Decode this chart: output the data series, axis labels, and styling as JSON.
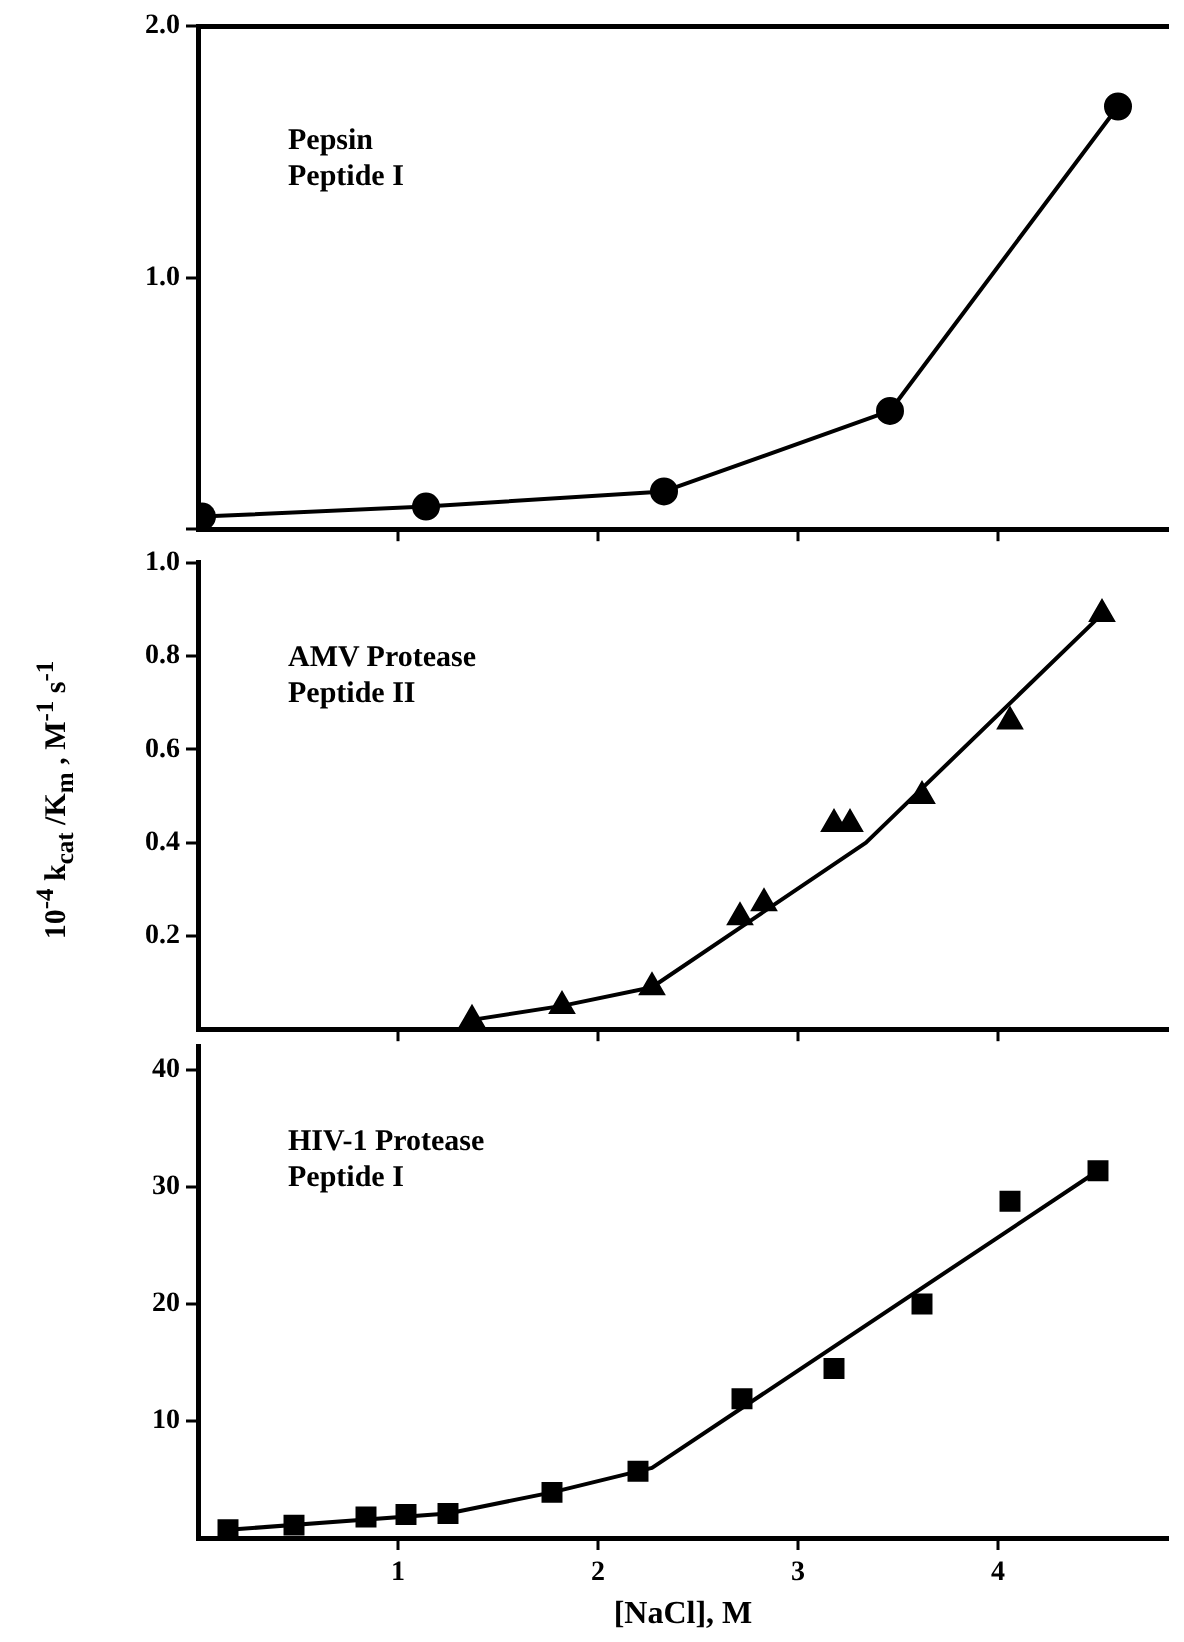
{
  "chart_data": [
    {
      "type": "line",
      "x": [
        0.02,
        1.14,
        2.33,
        3.46,
        4.6
      ],
      "series": [
        {
          "color": "#000000",
          "values": [
            0.05,
            0.09,
            0.15,
            0.47,
            1.68
          ]
        }
      ],
      "marker": "circle",
      "xlim": [
        0,
        4.85
      ],
      "xticks": [
        1,
        2,
        3,
        4
      ],
      "ylim": [
        0,
        2
      ],
      "yticks": [
        {
          "value": 0,
          "label": null
        },
        {
          "value": 1,
          "label": "1.0"
        },
        {
          "value": 2,
          "label": "2.0"
        }
      ],
      "tick_labels": "y",
      "annotations": [
        "Pepsin",
        "Peptide I"
      ]
    },
    {
      "type": "scatter",
      "x": [
        1.37,
        1.82,
        2.27,
        2.71,
        2.83,
        3.18,
        3.26,
        3.62,
        4.06,
        4.52
      ],
      "series": [
        {
          "color": "#000000",
          "values": [
            0.02,
            0.05,
            0.09,
            0.24,
            0.27,
            0.44,
            0.44,
            0.5,
            0.66,
            0.89
          ]
        },
        {
          "type": "line",
          "marker": "none",
          "color": "#000000",
          "x": [
            1.37,
            1.82,
            2.27,
            3.34,
            4.52
          ],
          "values": [
            0.02,
            0.05,
            0.09,
            0.4,
            0.89
          ]
        }
      ],
      "marker": "triangle",
      "xlim": [
        0,
        4.85
      ],
      "xticks": [
        1,
        2,
        3,
        4
      ],
      "ylim": [
        0,
        1
      ],
      "yticks": [
        0.2,
        0.4,
        0.6,
        0.8,
        {
          "value": 1,
          "label": "1.0"
        }
      ],
      "tick_labels": "y",
      "ylabel": "10$^{-4}$ k$_{cat}$ /K$_{m}$ , M$^{-1}$ s$^{-1}$",
      "annotations": [
        "AMV Protease",
        "Peptide II"
      ]
    },
    {
      "type": "scatter",
      "x": [
        0.15,
        0.48,
        0.84,
        1.04,
        1.25,
        1.77,
        2.2,
        2.72,
        3.18,
        3.62,
        4.06,
        4.5
      ],
      "series": [
        {
          "color": "#000000",
          "values": [
            0.7,
            1.1,
            1.8,
            2.0,
            2.1,
            3.9,
            5.7,
            11.9,
            14.5,
            20.0,
            28.8,
            31.4
          ]
        },
        {
          "type": "line",
          "marker": "none",
          "color": "#000000",
          "x": [
            0.15,
            1.25,
            1.77,
            2.27,
            4.5
          ],
          "values": [
            0.7,
            2.1,
            3.9,
            6.0,
            31.4
          ]
        }
      ],
      "marker": "square",
      "xlim": [
        0,
        4.85
      ],
      "xticks": [
        1,
        2,
        3,
        4
      ],
      "ylim": [
        0,
        42
      ],
      "yticks": [
        10,
        20,
        30,
        40
      ],
      "xlabel": "[NaCl], M",
      "annotations": [
        "HIV-1 Protease",
        "Peptide I"
      ]
    }
  ]
}
